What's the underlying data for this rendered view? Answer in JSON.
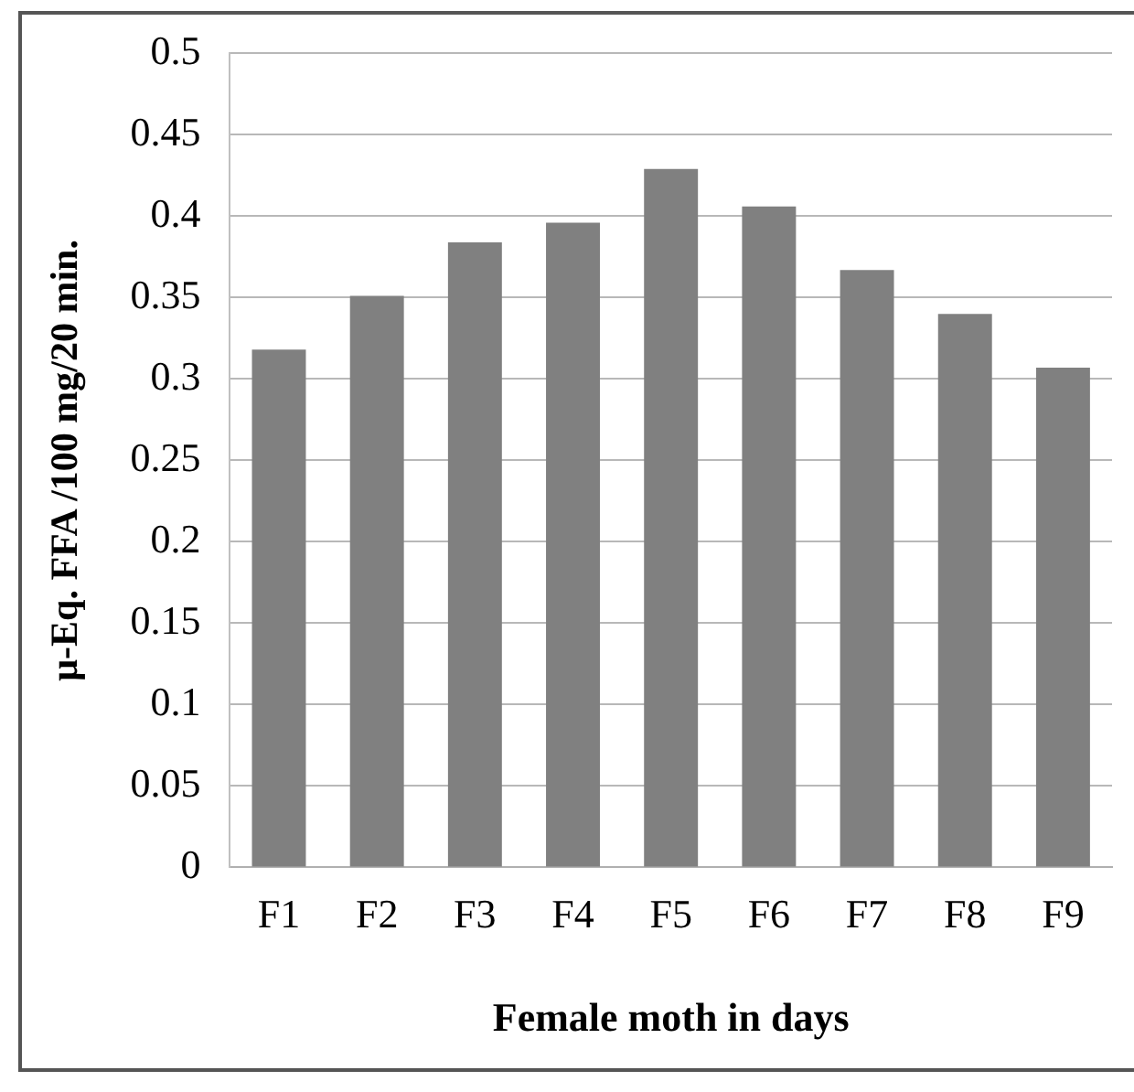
{
  "chart_data": {
    "type": "bar",
    "xlabel": "Female moth in days",
    "ylabel": "μ-Eq. FFA /100 mg/20 min.",
    "categories": [
      "F1",
      "F2",
      "F3",
      "F4",
      "F5",
      "F6",
      "F7",
      "F8",
      "F9"
    ],
    "values": [
      0.318,
      0.351,
      0.384,
      0.396,
      0.429,
      0.406,
      0.367,
      0.34,
      0.307
    ],
    "color": "#808080",
    "ylim": [
      0,
      0.5
    ],
    "yticks": [
      0,
      0.05,
      0.1,
      0.15,
      0.2,
      0.25,
      0.3,
      0.35,
      0.4,
      0.45,
      0.5
    ],
    "grid": "y",
    "legend": false
  }
}
